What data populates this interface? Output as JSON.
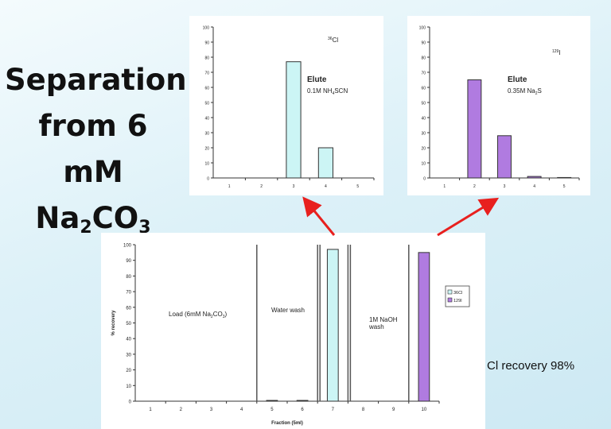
{
  "slide": {
    "title_line1": "Separation",
    "title_line2": "from 6 mM",
    "title_chem_na": "Na",
    "title_chem_na_sub": "2",
    "title_chem_co": "CO",
    "title_chem_co_sub": "3",
    "recovery_note": "Cl recovery 98%"
  },
  "colors": {
    "cl36_fill": "#ccf5f5",
    "i129_fill": "#b07be0",
    "arrow": "#e8201e",
    "axis": "#333333"
  },
  "chart_data": [
    {
      "type": "bar",
      "title": "",
      "isotope_prefix": "36",
      "isotope_symbol": "Cl",
      "annotation_title": "Elute",
      "annotation_text": "0.1M NH",
      "annotation_sub": "4",
      "annotation_tail": "SCN",
      "categories": [
        "1",
        "2",
        "3",
        "4",
        "5"
      ],
      "values": [
        0,
        0,
        77,
        20,
        0
      ],
      "yticks": [
        "0",
        "10",
        "20",
        "30",
        "40",
        "50",
        "60",
        "70",
        "80",
        "90",
        "100"
      ],
      "ylim": [
        0,
        100
      ],
      "xlabel": "",
      "ylabel": "",
      "series_color": "#ccf5f5"
    },
    {
      "type": "bar",
      "title": "",
      "isotope_prefix": "129",
      "isotope_symbol": "I",
      "annotation_title": "Elute",
      "annotation_text": "0.35M Na",
      "annotation_sub": "2",
      "annotation_tail": "S",
      "categories": [
        "1",
        "2",
        "3",
        "4",
        "5"
      ],
      "values": [
        0,
        65,
        28,
        1,
        0.3
      ],
      "yticks": [
        "0",
        "10",
        "20",
        "30",
        "40",
        "50",
        "60",
        "70",
        "80",
        "90",
        "100"
      ],
      "ylim": [
        0,
        100
      ],
      "xlabel": "",
      "ylabel": "",
      "series_color": "#b07be0"
    },
    {
      "type": "bar",
      "title": "",
      "categories": [
        "1",
        "2",
        "3",
        "4",
        "5",
        "6",
        "7",
        "8",
        "9",
        "10"
      ],
      "series": [
        {
          "name": "36Cl",
          "values": [
            0,
            0,
            0,
            0,
            0.5,
            0.5,
            97,
            0,
            0,
            0
          ],
          "color": "#ccf5f5"
        },
        {
          "name": "129I",
          "values": [
            0,
            0,
            0,
            0,
            0,
            0,
            0,
            0,
            0,
            95
          ],
          "color": "#b07be0"
        }
      ],
      "yticks": [
        "0",
        "10",
        "20",
        "30",
        "40",
        "50",
        "60",
        "70",
        "80",
        "90",
        "100"
      ],
      "ylim": [
        0,
        100
      ],
      "xlabel": "Fraction (5ml)",
      "ylabel": "% recovery",
      "regions": [
        {
          "label": "Load (6mM Na",
          "sub": "2",
          "tail": "CO",
          "sub2": "3",
          "close": ")"
        },
        {
          "label": "Water wash"
        },
        {
          "label": "1M NaOH",
          "label2": "wash"
        }
      ],
      "legend_position": "right"
    }
  ]
}
